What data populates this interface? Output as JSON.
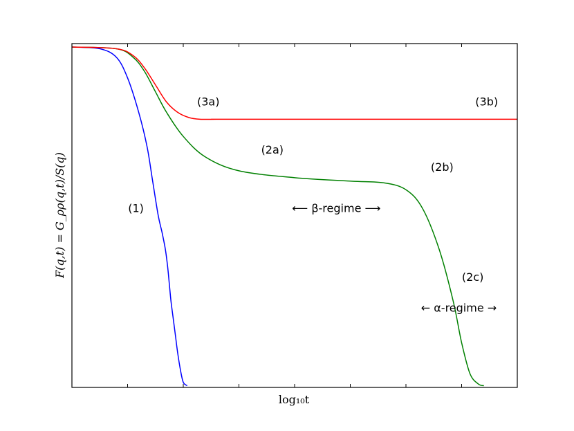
{
  "chart_data": {
    "type": "line",
    "title": "",
    "xlabel": "log₁₀t",
    "ylabel": "F(q,t) = G_ρρ(q,t)/S(q)",
    "xlim": [
      0,
      8
    ],
    "ylim": [
      0,
      1
    ],
    "grid": false,
    "tick_labels_shown": false,
    "series": [
      {
        "color": "#0000ff",
        "x": [
          0,
          0.5,
          0.8,
          1.0,
          1.2,
          1.35,
          1.45,
          1.55,
          1.62,
          1.68,
          1.72,
          1.75,
          1.78,
          1.82,
          1.86,
          1.9,
          1.95,
          2.0,
          2.07
        ],
        "y": [
          0.99,
          0.985,
          0.96,
          0.9,
          0.8,
          0.7,
          0.6,
          0.5,
          0.45,
          0.4,
          0.35,
          0.3,
          0.25,
          0.2,
          0.15,
          0.1,
          0.05,
          0.015,
          0.005
        ]
      },
      {
        "color": "#008000",
        "x": [
          0,
          0.8,
          1.1,
          1.3,
          1.5,
          1.7,
          2.0,
          2.4,
          3.0,
          4.0,
          5.0,
          5.6,
          6.0,
          6.3,
          6.6,
          6.85,
          7.0,
          7.15,
          7.3,
          7.4
        ],
        "y": [
          0.99,
          0.985,
          0.96,
          0.92,
          0.86,
          0.8,
          0.73,
          0.67,
          0.63,
          0.61,
          0.6,
          0.595,
          0.575,
          0.52,
          0.4,
          0.25,
          0.13,
          0.04,
          0.01,
          0.005
        ]
      },
      {
        "color": "#ff0000",
        "x": [
          0,
          0.8,
          1.1,
          1.3,
          1.5,
          1.7,
          1.9,
          2.1,
          2.3,
          2.6,
          3.0,
          8.0
        ],
        "y": [
          0.99,
          0.985,
          0.965,
          0.93,
          0.88,
          0.83,
          0.8,
          0.785,
          0.78,
          0.78,
          0.78,
          0.78
        ]
      }
    ],
    "annotations": [
      {
        "text": "(1)",
        "x": 1.15,
        "y": 0.51
      },
      {
        "text": "(2a)",
        "x": 3.6,
        "y": 0.68
      },
      {
        "text": "(2b)",
        "x": 6.65,
        "y": 0.63
      },
      {
        "text": "(2c)",
        "x": 7.2,
        "y": 0.31
      },
      {
        "text": "(3a)",
        "x": 2.45,
        "y": 0.82
      },
      {
        "text": "(3b)",
        "x": 7.45,
        "y": 0.82
      },
      {
        "text": "⟵ β-regime ⟶",
        "x": 4.75,
        "y": 0.51
      },
      {
        "text": "← α-regime →",
        "x": 6.95,
        "y": 0.22
      }
    ]
  }
}
